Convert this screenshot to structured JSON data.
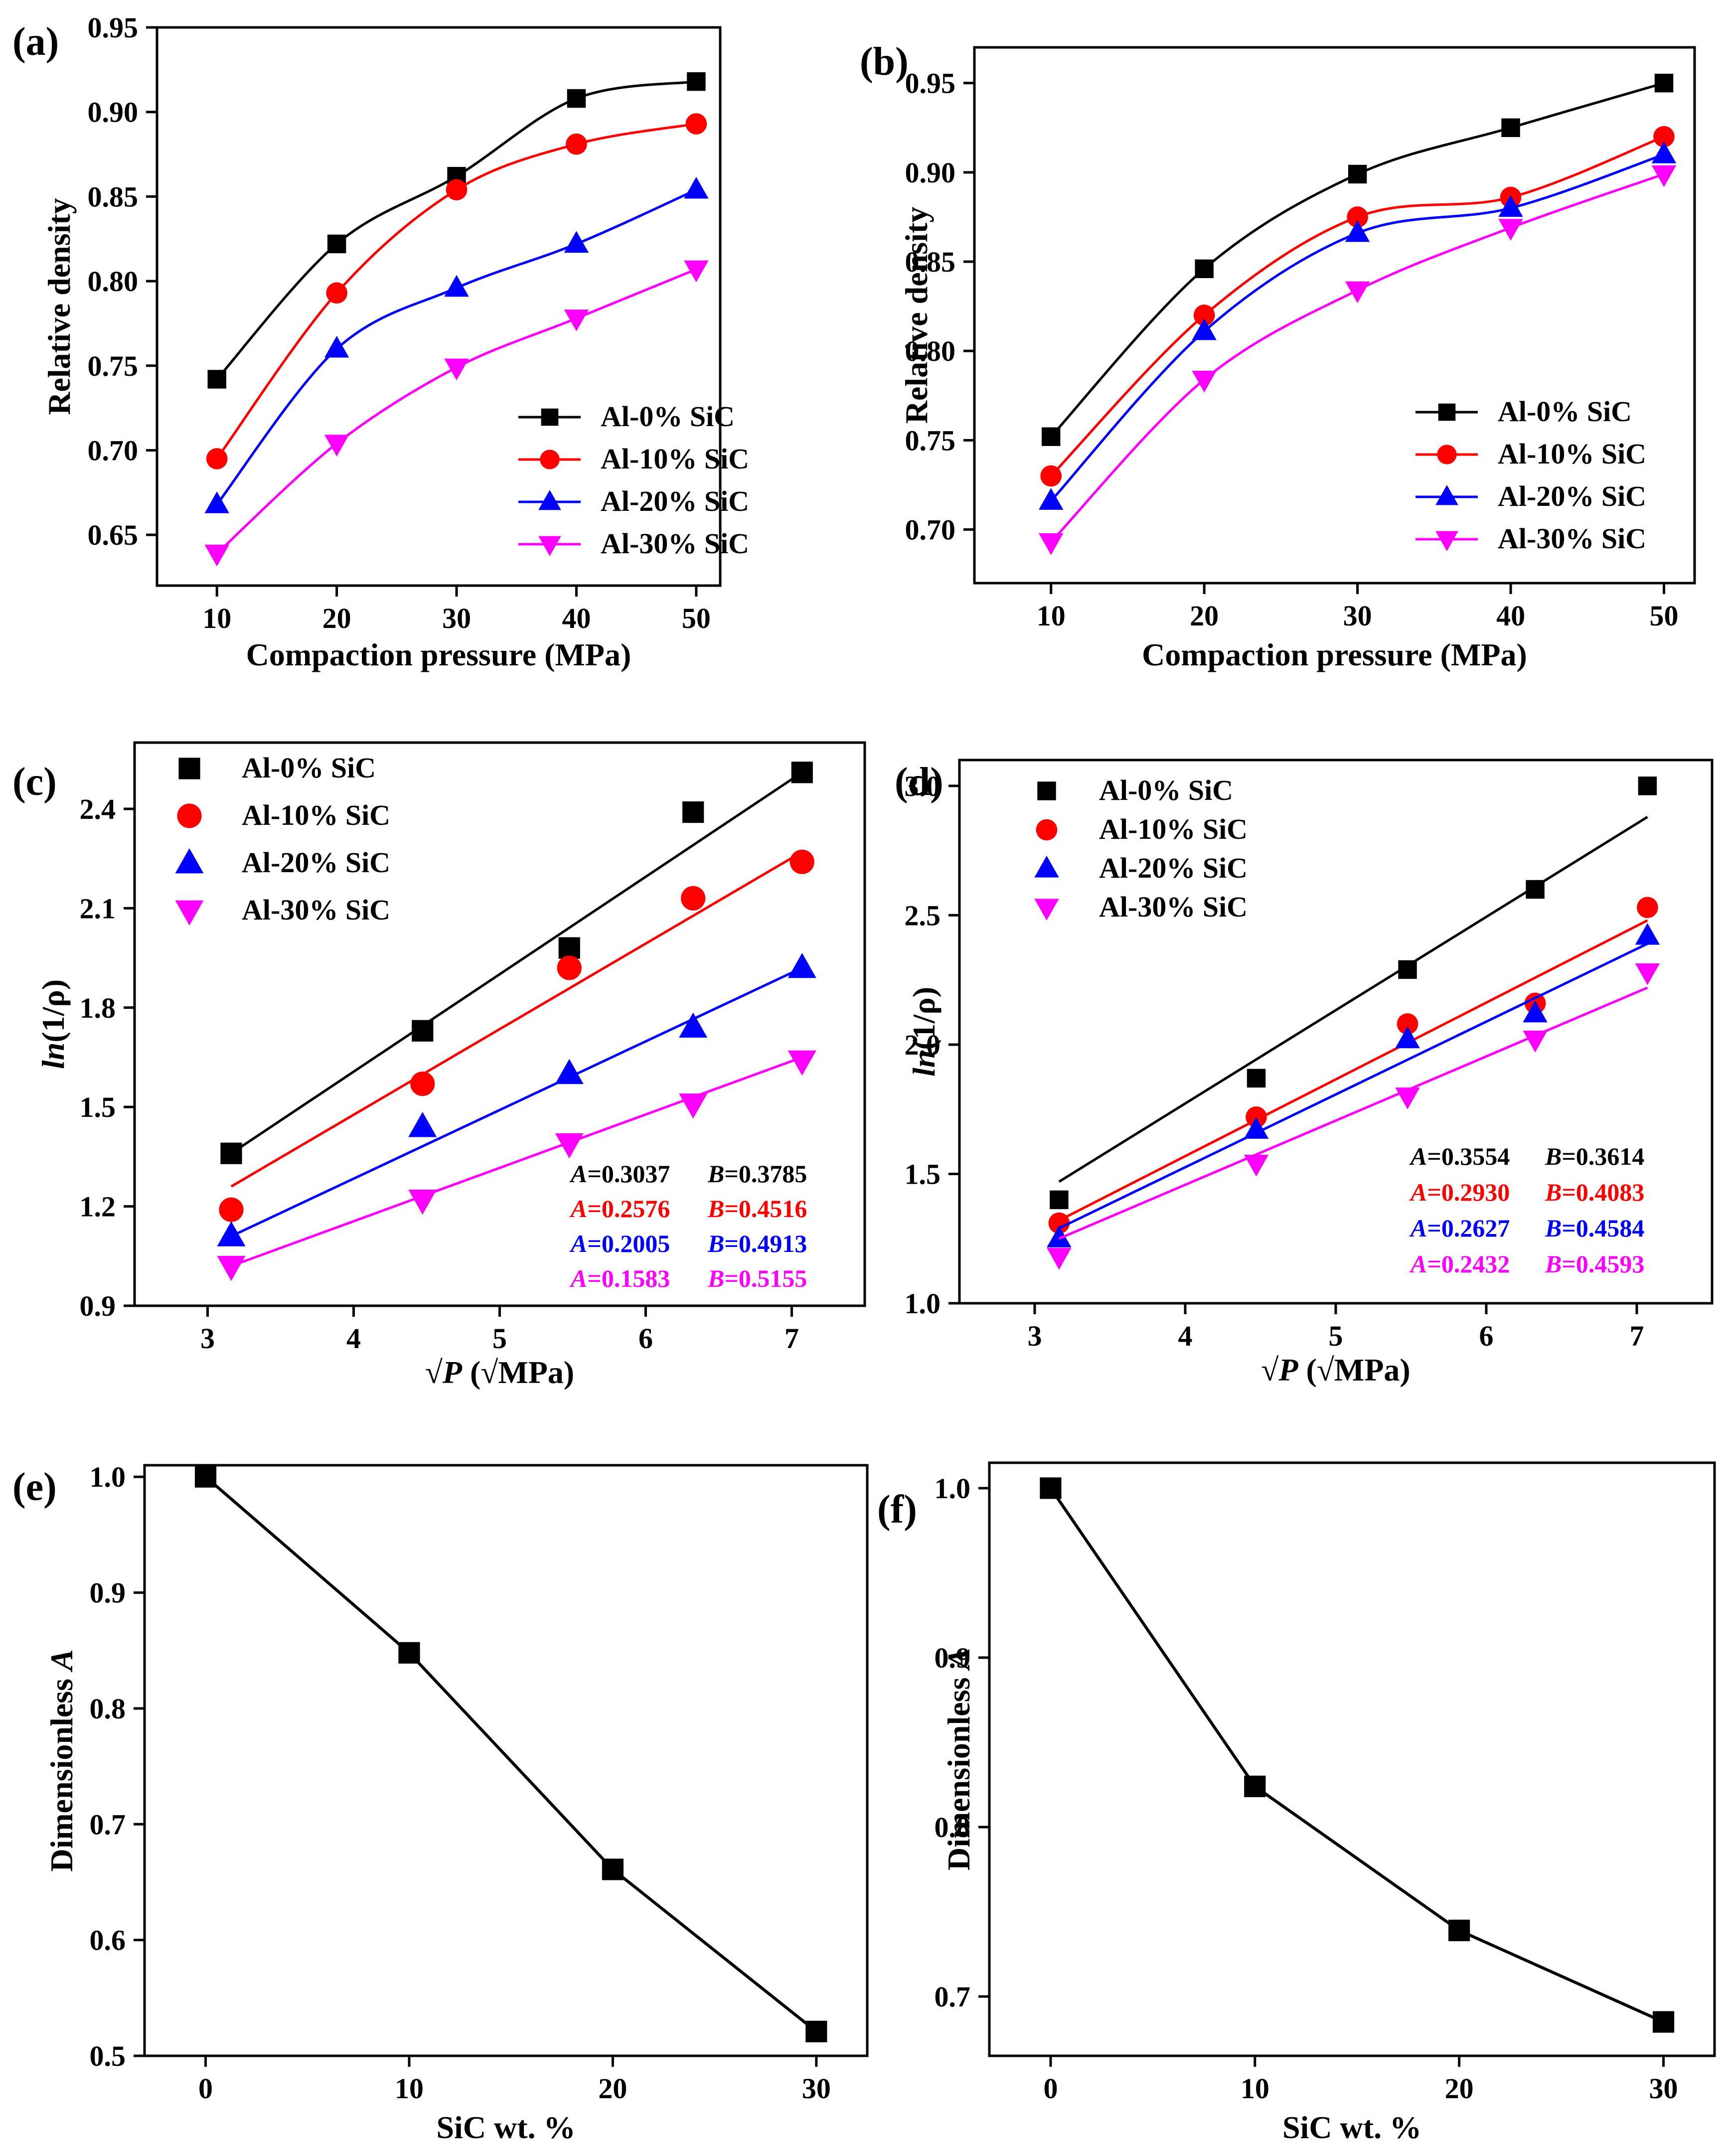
{
  "figure": {
    "colors": {
      "black": "#000000",
      "red": "#ff0000",
      "blue": "#0000ff",
      "magenta": "#ff00ff"
    }
  },
  "chart_data": [
    {
      "panel": "(a)",
      "type": "line",
      "fit": "smooth",
      "xlabel": "Compaction pressure (MPa)",
      "ylabel": "Relative density",
      "x": [
        10,
        20,
        30,
        40,
        50
      ],
      "xlim": [
        5,
        52
      ],
      "xticks": [
        10,
        20,
        30,
        40,
        50
      ],
      "ylim": [
        0.62,
        0.95
      ],
      "yticks": [
        0.65,
        0.7,
        0.75,
        0.8,
        0.85,
        0.9,
        0.95
      ],
      "ytick_labels": [
        "0.65",
        "0.70",
        "0.75",
        "0.80",
        "0.85",
        "0.90",
        "0.95"
      ],
      "legend_position": "bottom-right",
      "series": [
        {
          "name": "Al-0% SiC",
          "color": "#000000",
          "marker": "square",
          "values": [
            0.742,
            0.822,
            0.862,
            0.908,
            0.918
          ]
        },
        {
          "name": "Al-10% SiC",
          "color": "#ff0000",
          "marker": "circle",
          "values": [
            0.695,
            0.793,
            0.854,
            0.881,
            0.893
          ]
        },
        {
          "name": "Al-20% SiC",
          "color": "#0000ff",
          "marker": "triangle-up",
          "values": [
            0.668,
            0.76,
            0.796,
            0.822,
            0.854
          ]
        },
        {
          "name": "Al-30% SiC",
          "color": "#ff00ff",
          "marker": "triangle-down",
          "values": [
            0.639,
            0.704,
            0.749,
            0.778,
            0.807
          ]
        }
      ]
    },
    {
      "panel": "(b)",
      "type": "line",
      "fit": "smooth",
      "xlabel": "Compaction pressure (MPa)",
      "ylabel": "Relative density",
      "x": [
        10,
        20,
        30,
        40,
        50
      ],
      "xlim": [
        5,
        52
      ],
      "xticks": [
        10,
        20,
        30,
        40,
        50
      ],
      "ylim": [
        0.67,
        0.97
      ],
      "yticks": [
        0.7,
        0.75,
        0.8,
        0.85,
        0.9,
        0.95
      ],
      "ytick_labels": [
        "0.70",
        "0.75",
        "0.80",
        "0.85",
        "0.90",
        "0.95"
      ],
      "legend_position": "bottom-right",
      "series": [
        {
          "name": "Al-0% SiC",
          "color": "#000000",
          "marker": "square",
          "values": [
            0.752,
            0.846,
            0.899,
            0.925,
            0.95
          ]
        },
        {
          "name": "Al-10% SiC",
          "color": "#ff0000",
          "marker": "circle",
          "values": [
            0.73,
            0.82,
            0.875,
            0.886,
            0.92
          ]
        },
        {
          "name": "Al-20% SiC",
          "color": "#0000ff",
          "marker": "triangle-up",
          "values": [
            0.716,
            0.811,
            0.866,
            0.88,
            0.91
          ]
        },
        {
          "name": "Al-30% SiC",
          "color": "#ff00ff",
          "marker": "triangle-down",
          "values": [
            0.693,
            0.784,
            0.834,
            0.869,
            0.899
          ]
        }
      ]
    },
    {
      "panel": "(c)",
      "type": "scatter",
      "fit": "linear",
      "xlabel": "√P (√MPa)",
      "ylabel": "ln(1/ρ)",
      "x": [
        3.162,
        4.472,
        5.477,
        6.325,
        7.071
      ],
      "xlim": [
        2.5,
        7.5
      ],
      "xticks": [
        3,
        4,
        5,
        6,
        7
      ],
      "ylim": [
        0.9,
        2.6
      ],
      "yticks": [
        0.9,
        1.2,
        1.5,
        1.8,
        2.1,
        2.4
      ],
      "ytick_labels": [
        "0.9",
        "1.2",
        "1.5",
        "1.8",
        "2.1",
        "2.4"
      ],
      "legend_position": "top-left",
      "series": [
        {
          "name": "Al-0% SiC",
          "color": "#000000",
          "marker": "square",
          "values": [
            1.36,
            1.73,
            1.98,
            2.39,
            2.51
          ],
          "fit_line": [
            1.36,
            2.51
          ]
        },
        {
          "name": "Al-10% SiC",
          "color": "#ff0000",
          "marker": "circle",
          "values": [
            1.19,
            1.57,
            1.92,
            2.13,
            2.24
          ],
          "fit_line": [
            1.26,
            2.27
          ]
        },
        {
          "name": "Al-20% SiC",
          "color": "#0000ff",
          "marker": "triangle-up",
          "values": [
            1.11,
            1.44,
            1.6,
            1.74,
            1.92
          ],
          "fit_line": [
            1.11,
            1.92
          ]
        },
        {
          "name": "Al-30% SiC",
          "color": "#ff00ff",
          "marker": "triangle-down",
          "values": [
            1.02,
            1.22,
            1.39,
            1.51,
            1.64
          ],
          "fit_line": [
            1.02,
            1.65
          ]
        }
      ],
      "annotations": [
        {
          "a_label": "A",
          "a_value": "=0.3037",
          "b_label": "B",
          "b_value": "=0.3785",
          "color": "#000000"
        },
        {
          "a_label": "A",
          "a_value": "=0.2576",
          "b_label": "B",
          "b_value": "=0.4516",
          "color": "#ff0000"
        },
        {
          "a_label": "A",
          "a_value": "=0.2005",
          "b_label": "B",
          "b_value": "=0.4913",
          "color": "#0000ff"
        },
        {
          "a_label": "A",
          "a_value": "=0.1583",
          "b_label": "B",
          "b_value": "=0.5155",
          "color": "#ff00ff"
        }
      ]
    },
    {
      "panel": "(d)",
      "type": "scatter",
      "fit": "linear",
      "xlabel": "√P (√MPa)",
      "ylabel": "ln(1/ρ)",
      "x": [
        3.162,
        4.472,
        5.477,
        6.325,
        7.071
      ],
      "xlim": [
        2.5,
        7.5
      ],
      "xticks": [
        3,
        4,
        5,
        6,
        7
      ],
      "ylim": [
        1.0,
        3.1
      ],
      "yticks": [
        1.0,
        1.5,
        2.0,
        2.5,
        3.0
      ],
      "ytick_labels": [
        "1.0",
        "1.5",
        "2.0",
        "2.5",
        "3.0"
      ],
      "legend_position": "top-left",
      "series": [
        {
          "name": "Al-0% SiC",
          "color": "#000000",
          "marker": "square",
          "values": [
            1.4,
            1.87,
            2.29,
            2.6,
            3.0
          ],
          "fit_line": [
            1.47,
            2.88
          ]
        },
        {
          "name": "Al-10% SiC",
          "color": "#ff0000",
          "marker": "circle",
          "values": [
            1.31,
            1.72,
            2.08,
            2.16,
            2.53
          ],
          "fit_line": [
            1.32,
            2.48
          ]
        },
        {
          "name": "Al-20% SiC",
          "color": "#0000ff",
          "marker": "triangle-up",
          "values": [
            1.25,
            1.67,
            2.02,
            2.12,
            2.42
          ],
          "fit_line": [
            1.29,
            2.39
          ]
        },
        {
          "name": "Al-30% SiC",
          "color": "#ff00ff",
          "marker": "triangle-down",
          "values": [
            1.18,
            1.54,
            1.8,
            2.02,
            2.28
          ],
          "fit_line": [
            1.25,
            2.22
          ]
        }
      ],
      "annotations": [
        {
          "a_label": "A",
          "a_value": "=0.3554",
          "b_label": "B",
          "b_value": "=0.3614",
          "color": "#000000"
        },
        {
          "a_label": "A",
          "a_value": "=0.2930",
          "b_label": "B",
          "b_value": "=0.4083",
          "color": "#ff0000"
        },
        {
          "a_label": "A",
          "a_value": "=0.2627",
          "b_label": "B",
          "b_value": "=0.4584",
          "color": "#0000ff"
        },
        {
          "a_label": "A",
          "a_value": "=0.2432",
          "b_label": "B",
          "b_value": "=0.4593",
          "color": "#ff00ff"
        }
      ]
    },
    {
      "panel": "(e)",
      "type": "line",
      "xlabel": "SiC wt. %",
      "ylabel": "Dimensionless A",
      "x": [
        0,
        10,
        20,
        30
      ],
      "xlim": [
        -3,
        32.5
      ],
      "xticks": [
        0,
        10,
        20,
        30
      ],
      "ylim": [
        0.5,
        1.01
      ],
      "yticks": [
        0.5,
        0.6,
        0.7,
        0.8,
        0.9,
        1.0
      ],
      "ytick_labels": [
        "0.5",
        "0.6",
        "0.7",
        "0.8",
        "0.9",
        "1.0"
      ],
      "series": [
        {
          "name": "Dimensionless A",
          "color": "#000000",
          "marker": "square",
          "values": [
            1.0,
            0.848,
            0.661,
            0.521
          ]
        }
      ]
    },
    {
      "panel": "(f)",
      "type": "line",
      "xlabel": "SiC wt. %",
      "ylabel": "Dimensionless A",
      "x": [
        0,
        10,
        20,
        30
      ],
      "xlim": [
        -3,
        32.5
      ],
      "xticks": [
        0,
        10,
        20,
        30
      ],
      "ylim": [
        0.665,
        1.015
      ],
      "yticks": [
        0.7,
        0.8,
        0.9,
        1.0
      ],
      "ytick_labels": [
        "0.7",
        "0.8",
        "0.9",
        "1.0"
      ],
      "series": [
        {
          "name": "Dimensionless A",
          "color": "#000000",
          "marker": "square",
          "values": [
            1.0,
            0.824,
            0.739,
            0.685
          ]
        }
      ]
    }
  ]
}
